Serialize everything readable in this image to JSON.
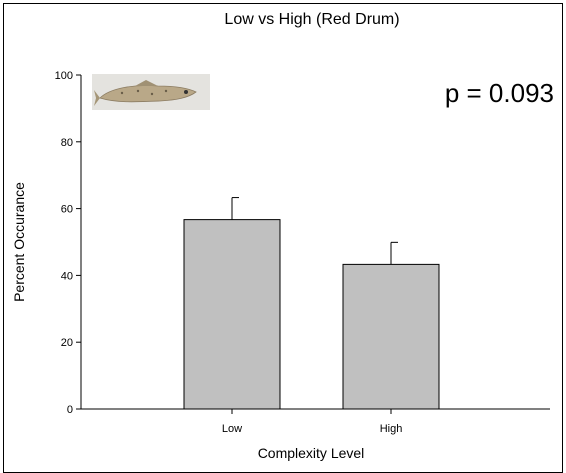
{
  "chart_data": {
    "type": "bar",
    "title": "Low vs High (Red Drum)",
    "xlabel": "Complexity Level",
    "ylabel": "Percent Occurance",
    "categories": [
      "Low",
      "High"
    ],
    "values": [
      56.7,
      43.3
    ],
    "error_upper": [
      6.6,
      6.6
    ],
    "ylim": [
      0,
      100
    ],
    "yticks": [
      0,
      20,
      40,
      60,
      80,
      100
    ],
    "grid": false,
    "annotation": "p = 0.093",
    "colors": {
      "bar_fill": "#c0c0c0",
      "bar_stroke": "#000000",
      "axis": "#000000"
    },
    "image_icon": "red-drum-fish-photo"
  }
}
